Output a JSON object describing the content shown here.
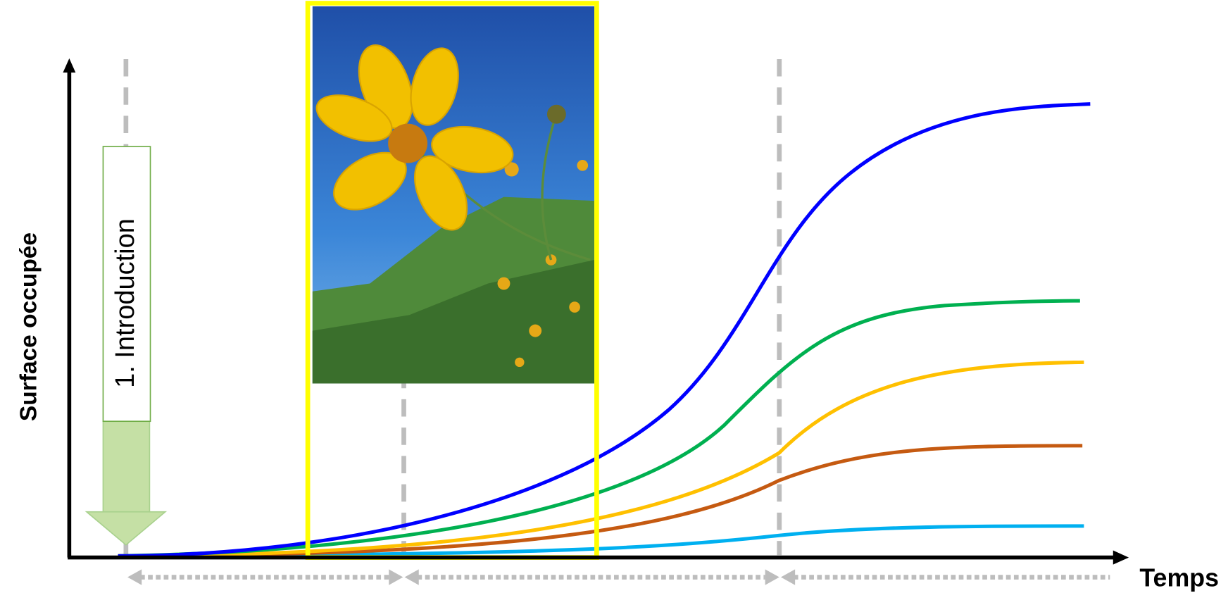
{
  "axes": {
    "y_label": "Surface occupée",
    "x_label": "Temps"
  },
  "phases": [
    {
      "label": "1. Introduction"
    }
  ]
}
